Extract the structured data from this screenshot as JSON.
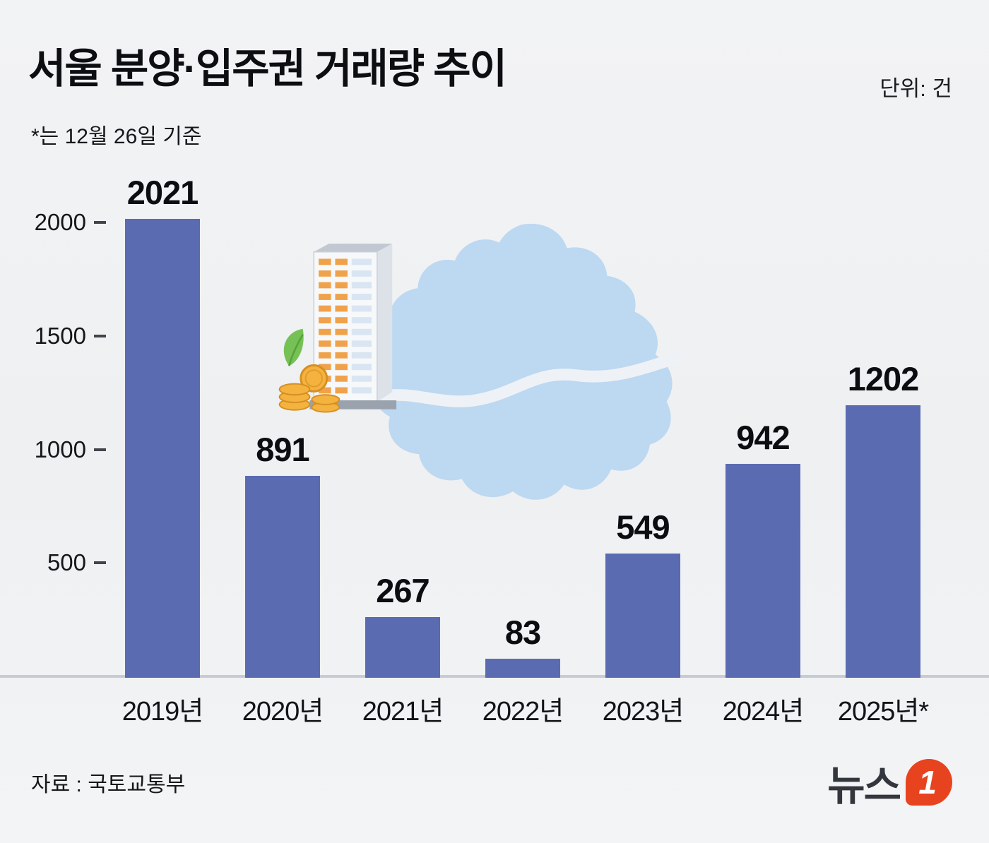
{
  "header": {
    "title": "서울 분양·입주권 거래량 추이",
    "unit_label": "단위: 건",
    "note": "*는 12월 26일 기준"
  },
  "footer": {
    "source": "자료 : 국토교통부",
    "logo_text": "뉴스",
    "logo_number": "1"
  },
  "colors": {
    "bar": "#5b6bb2",
    "map": "#bdd8f1",
    "river": "#eef2f6",
    "baseline": "#c7cbd2",
    "logo_red": "#e8431f"
  },
  "chart_data": {
    "type": "bar",
    "title": "서울 분양·입주권 거래량 추이",
    "subtitle": "*는 12월 26일 기준",
    "unit": "건",
    "categories": [
      "2019년",
      "2020년",
      "2021년",
      "2022년",
      "2023년",
      "2024년",
      "2025년*"
    ],
    "values": [
      2021,
      891,
      267,
      83,
      549,
      942,
      1202
    ],
    "xlabel": "",
    "ylabel": "",
    "ylim": [
      0,
      2100
    ],
    "yticks": [
      2000,
      1500,
      1000,
      500
    ],
    "grid": false,
    "legend": false,
    "source": "국토교통부"
  }
}
